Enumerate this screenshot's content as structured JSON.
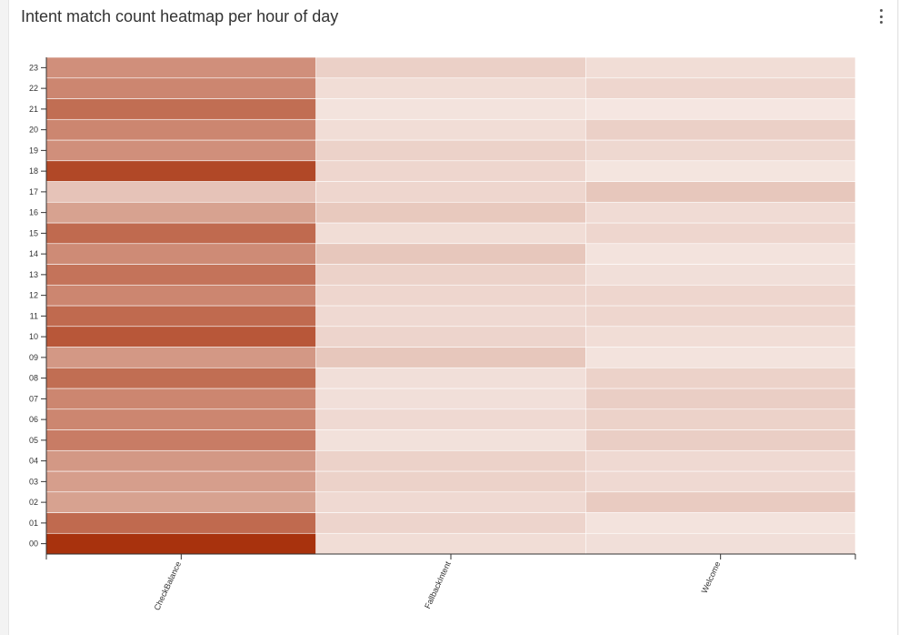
{
  "panel": {
    "title": "Intent match count heatmap per hour of day",
    "menu_icon": "more-vertical-icon"
  },
  "chart_data": {
    "type": "heatmap",
    "title": "Intent match count heatmap per hour of day",
    "x_categories": [
      "CheckBalance",
      "FallbackIntent",
      "Welcome"
    ],
    "y_categories": [
      "00",
      "01",
      "02",
      "03",
      "04",
      "05",
      "06",
      "07",
      "08",
      "09",
      "10",
      "11",
      "12",
      "13",
      "14",
      "15",
      "16",
      "17",
      "18",
      "19",
      "20",
      "21",
      "22",
      "23"
    ],
    "intensity_scale": {
      "min": 0,
      "max": 1,
      "low_color": "#f7ece8",
      "high_color": "#a8320d"
    },
    "values": {
      "CheckBalance": [
        1.0,
        0.7,
        0.4,
        0.42,
        0.45,
        0.6,
        0.55,
        0.55,
        0.68,
        0.45,
        0.8,
        0.7,
        0.55,
        0.65,
        0.52,
        0.7,
        0.4,
        0.22,
        0.88,
        0.5,
        0.55,
        0.68,
        0.55,
        0.5
      ],
      "FallbackIntent": [
        0.08,
        0.13,
        0.1,
        0.14,
        0.14,
        0.06,
        0.1,
        0.07,
        0.07,
        0.2,
        0.13,
        0.1,
        0.12,
        0.14,
        0.2,
        0.08,
        0.19,
        0.12,
        0.12,
        0.14,
        0.08,
        0.05,
        0.08,
        0.15
      ],
      "Welcome": [
        0.07,
        0.05,
        0.18,
        0.1,
        0.1,
        0.16,
        0.14,
        0.16,
        0.14,
        0.05,
        0.08,
        0.12,
        0.12,
        0.07,
        0.05,
        0.12,
        0.09,
        0.2,
        0.04,
        0.11,
        0.15,
        0.03,
        0.12,
        0.08
      ]
    }
  }
}
